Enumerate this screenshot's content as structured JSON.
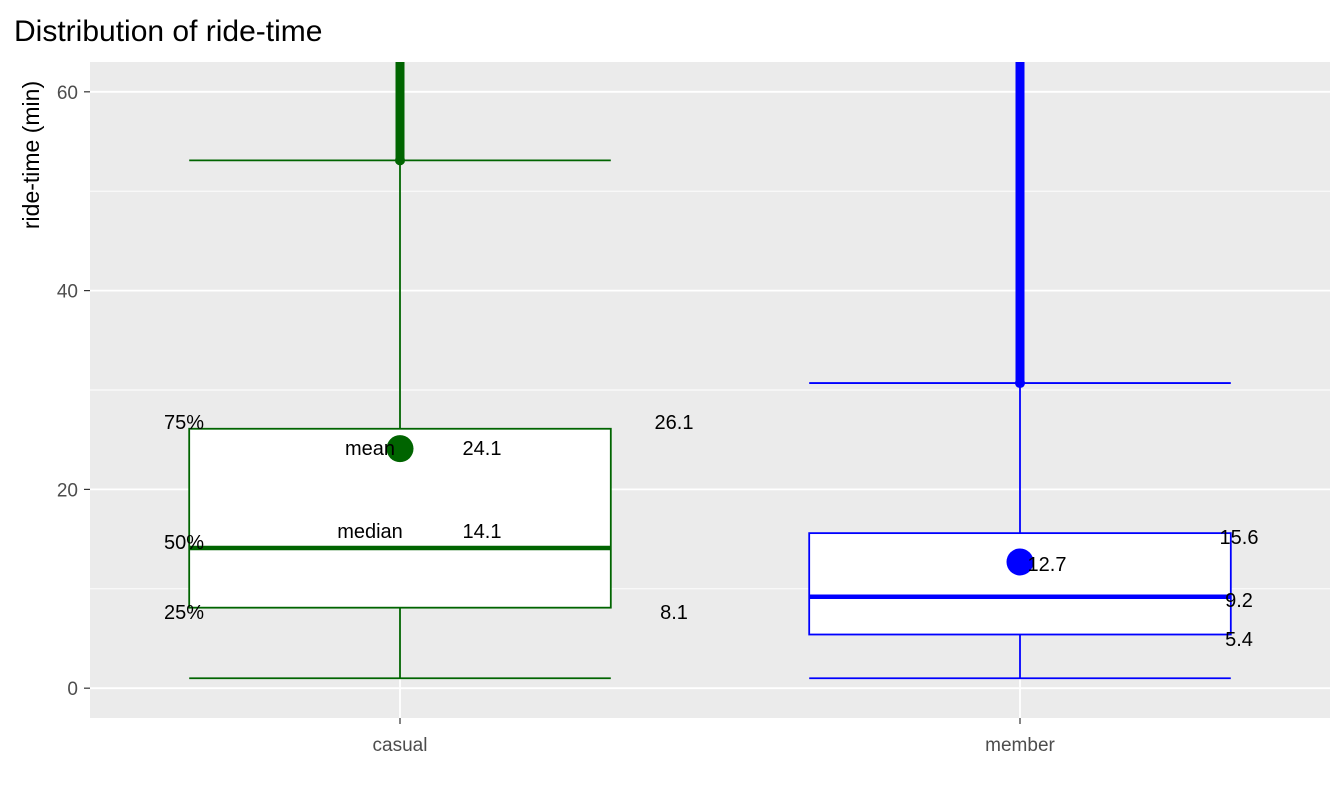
{
  "chart_data": {
    "type": "boxplot",
    "title": "Distribution of ride-time",
    "xlabel": "",
    "ylabel": "ride-time (min)",
    "ylim": [
      -3,
      63
    ],
    "yticks": [
      0,
      20,
      40,
      60
    ],
    "grid": true,
    "categories": [
      "casual",
      "member"
    ],
    "series": [
      {
        "category": "casual",
        "color": "#006400",
        "whisker_low": 1.0,
        "q1": 8.1,
        "median": 14.1,
        "q3": 26.1,
        "whisker_high": 53.1,
        "mean": 24.1,
        "outlier_top": 63
      },
      {
        "category": "member",
        "color": "#0000ff",
        "whisker_low": 1.0,
        "q1": 5.4,
        "median": 9.2,
        "q3": 15.6,
        "whisker_high": 30.7,
        "mean": 12.7,
        "outlier_top": 63
      }
    ],
    "annotations": {
      "q3_label": "75%",
      "median_label": "50%",
      "q1_label": "25%",
      "mean_text": "mean",
      "median_text": "median",
      "casual_mean_value": "24.1",
      "casual_median_value": "14.1",
      "casual_q3_value": "26.1",
      "casual_q1_value": "8.1",
      "member_mean_value": "12.7",
      "member_q3_value": "15.6",
      "member_median_value": "9.2",
      "member_q1_value": "5.4"
    }
  },
  "colors": {
    "panel": "#ebebeb",
    "grid": "#ffffff",
    "casual": "#006400",
    "member": "#0000ff"
  }
}
